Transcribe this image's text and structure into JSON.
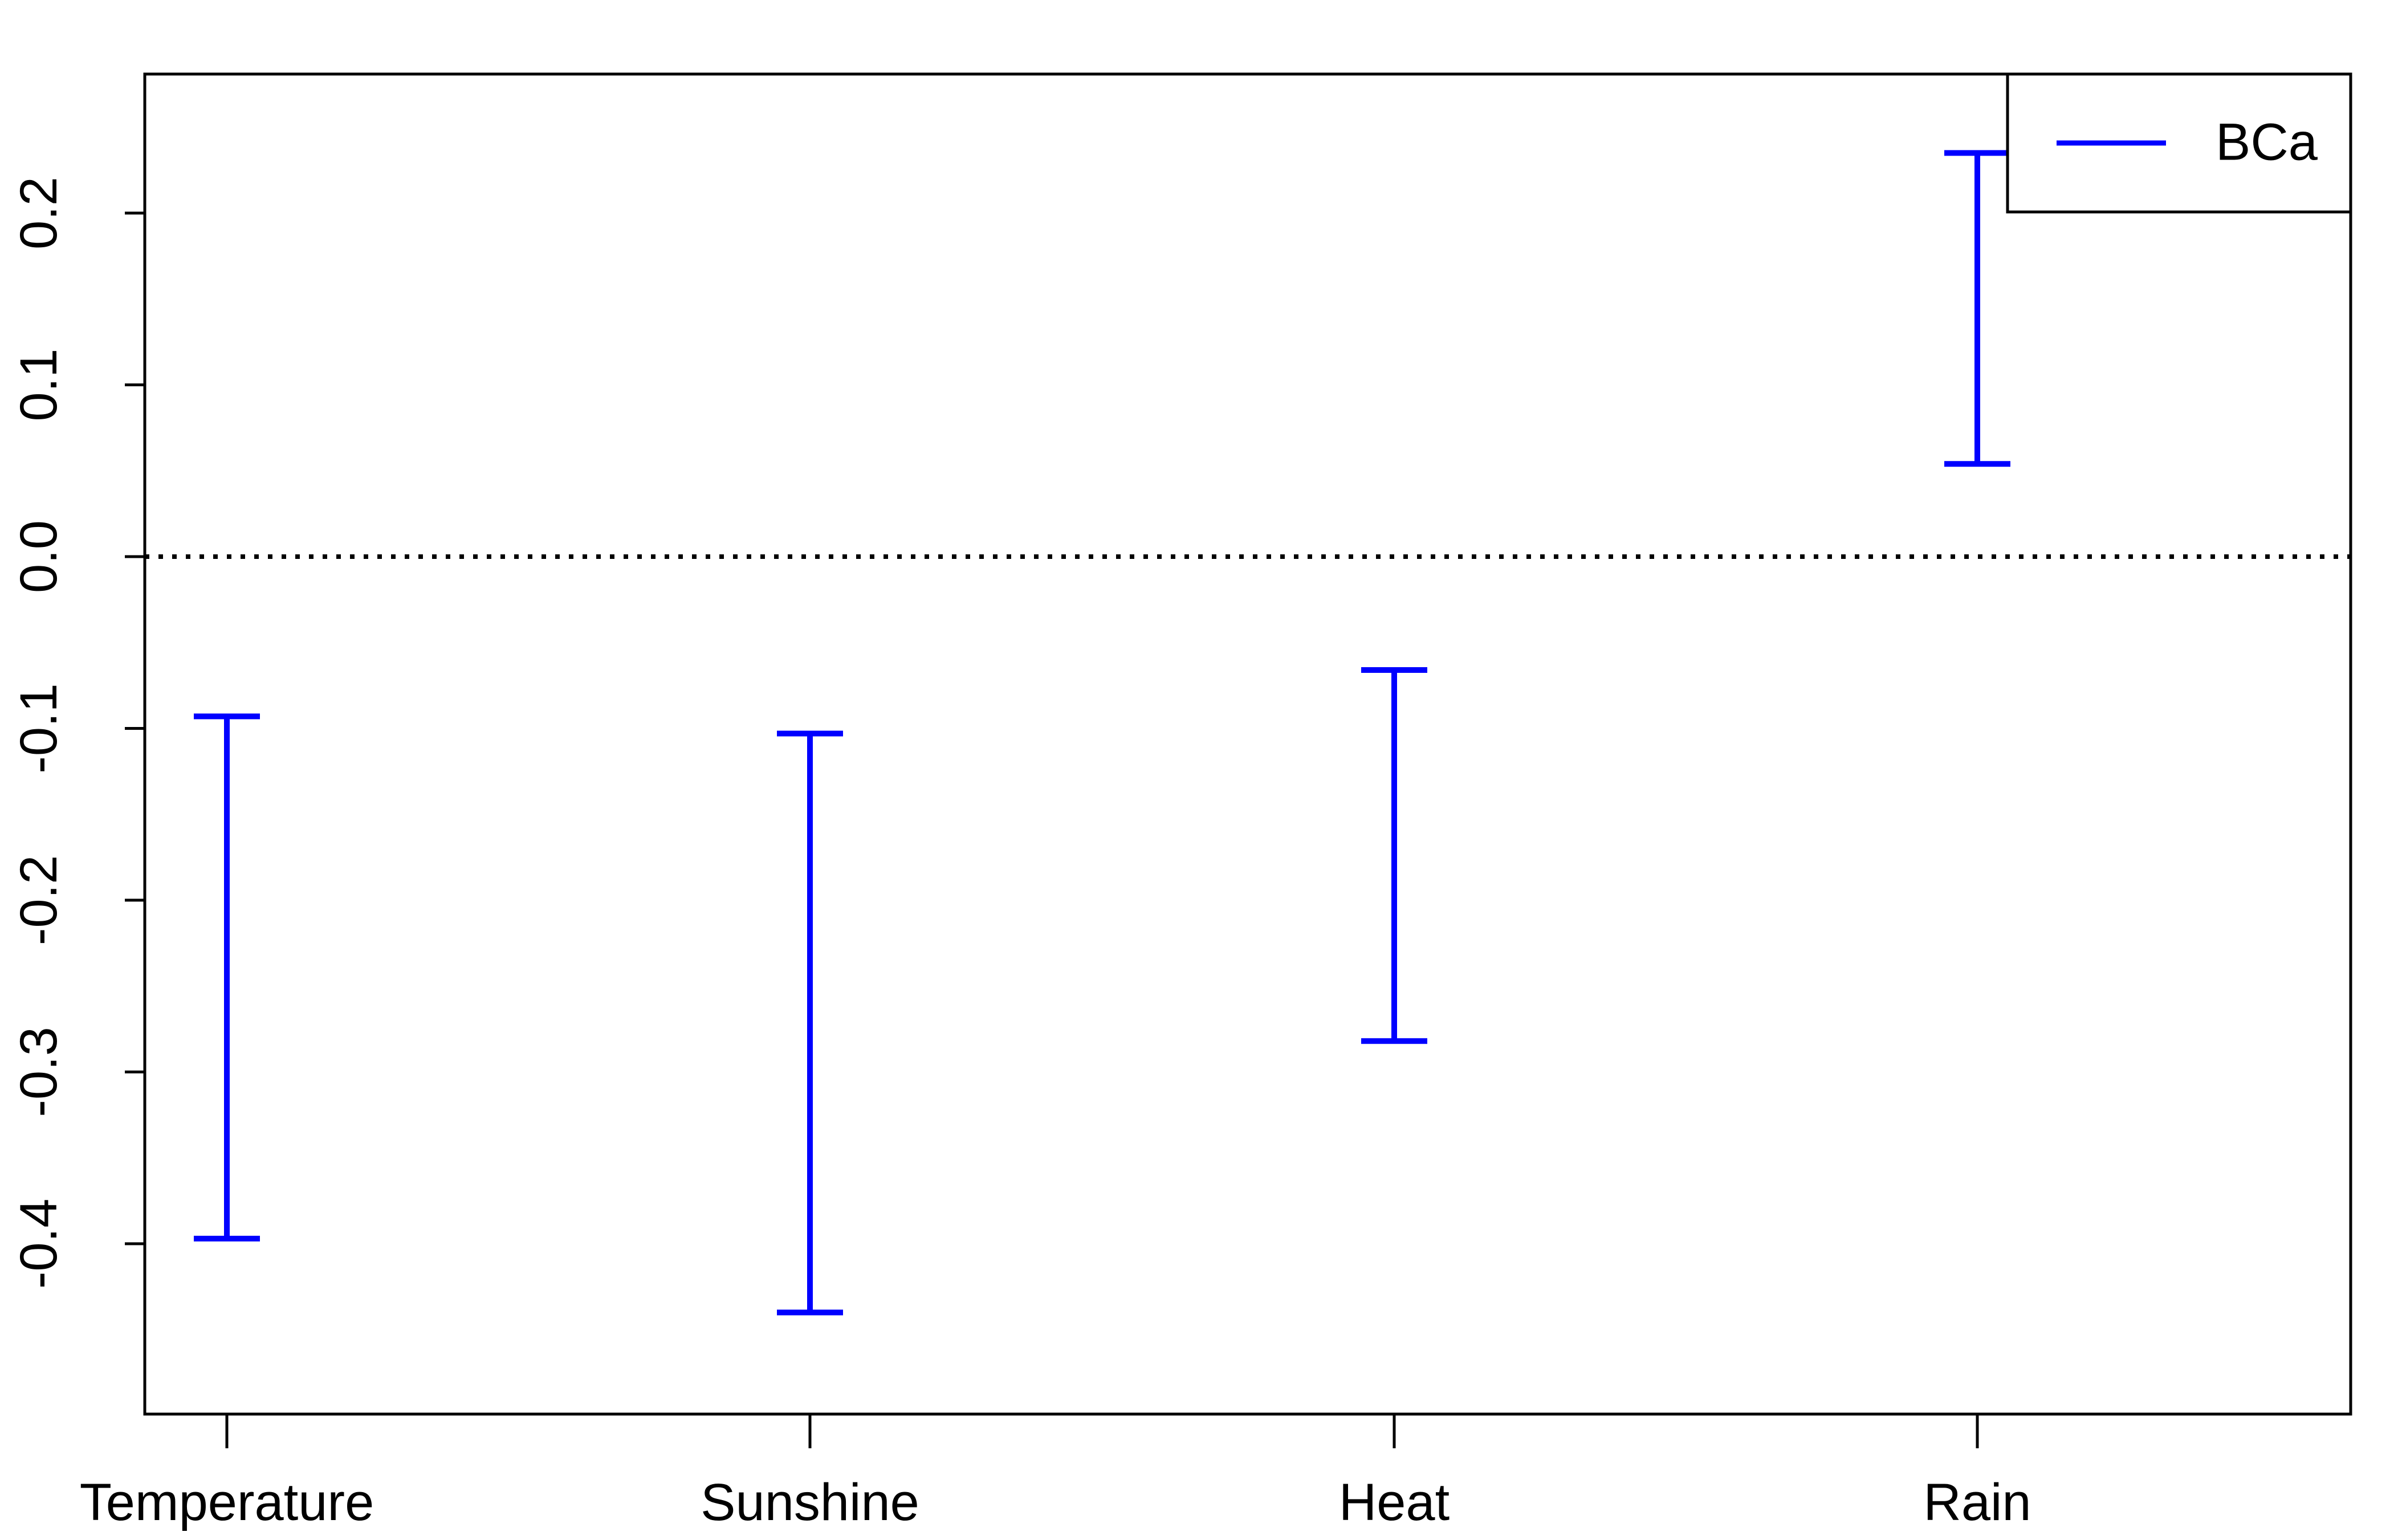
{
  "chart_data": {
    "type": "errorbar",
    "title": "",
    "xlabel": "",
    "ylabel": "",
    "categories": [
      "Temperature",
      "Sunshine",
      "Heat",
      "Rain"
    ],
    "series": [
      {
        "name": "BCa",
        "lower": [
          -0.397,
          -0.44,
          -0.282,
          0.054
        ],
        "upper": [
          -0.093,
          -0.103,
          -0.066,
          0.235
        ]
      }
    ],
    "ylim": [
      -0.5,
      0.28
    ],
    "yticks": [
      -0.4,
      -0.3,
      -0.2,
      -0.1,
      0.0,
      0.1,
      0.2
    ],
    "ytick_labels": [
      "-0.4",
      "-0.3",
      "-0.2",
      "-0.1",
      "0.0",
      "0.1",
      "0.2"
    ],
    "reference_line": {
      "y": 0.0,
      "style": "dotted",
      "color": "#000000"
    },
    "series_color": "#0000ff",
    "legend": {
      "placement": "top-right",
      "entries": [
        "BCa"
      ]
    },
    "grid": false
  }
}
